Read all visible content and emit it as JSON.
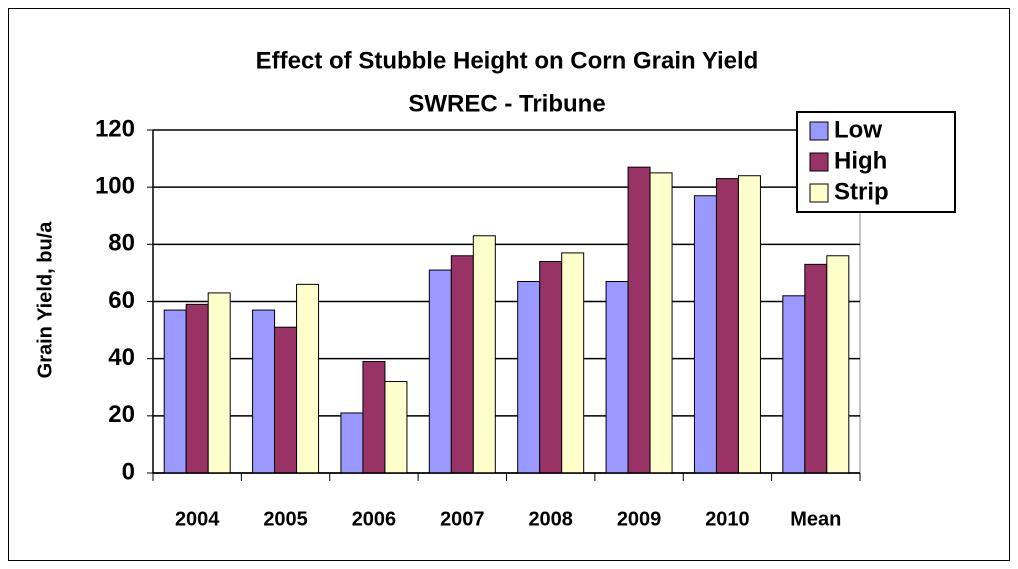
{
  "chart_data": {
    "type": "bar",
    "title": "Effect of Stubble Height on Corn Grain Yield",
    "subtitle": "SWREC - Tribune",
    "y_label": "Grain Yield, bu/a",
    "categories": [
      "2004",
      "2005",
      "2006",
      "2007",
      "2008",
      "2009",
      "2010",
      "Mean"
    ],
    "series": [
      {
        "name": "Low",
        "color": "#9999ff",
        "values": [
          57,
          57,
          21,
          71,
          67,
          67,
          97,
          62
        ]
      },
      {
        "name": "High",
        "color": "#993366",
        "values": [
          59,
          51,
          39,
          76,
          74,
          107,
          103,
          73
        ]
      },
      {
        "name": "Strip",
        "color": "#ffffcc",
        "values": [
          63,
          66,
          32,
          83,
          77,
          105,
          104,
          76
        ]
      }
    ],
    "ylim": [
      0,
      120
    ],
    "yticks": [
      0,
      20,
      40,
      60,
      80,
      100,
      120
    ],
    "grid": true,
    "legend": "top-right"
  }
}
